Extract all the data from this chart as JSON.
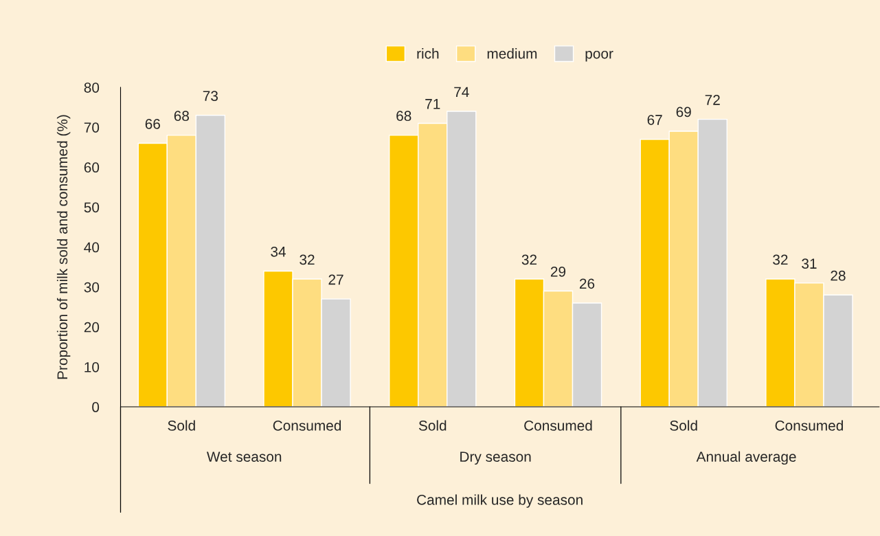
{
  "chart_data": {
    "type": "bar",
    "categories": [
      "Sold",
      "Consumed",
      "Sold",
      "Consumed",
      "Sold",
      "Consumed"
    ],
    "series": [
      {
        "name": "rich",
        "color": "#fdc800",
        "values": [
          66,
          34,
          68,
          32,
          67,
          32
        ]
      },
      {
        "name": "medium",
        "color": "#fedd80",
        "values": [
          68,
          32,
          71,
          29,
          69,
          31
        ]
      },
      {
        "name": "poor",
        "color": "#d3d3d3",
        "values": [
          73,
          27,
          74,
          26,
          72,
          28
        ]
      }
    ],
    "annotations": [
      "Wet season",
      "Dry season",
      "Annual average"
    ],
    "xlabel": "Camel milk use by season",
    "ylabel": "Proportion of milk sold and consumed (%)",
    "ylim": [
      0,
      80
    ],
    "yticks": [
      0,
      10,
      20,
      30,
      40,
      50,
      60,
      70,
      80
    ],
    "data_labels": true,
    "legend": "top",
    "grid": false
  }
}
